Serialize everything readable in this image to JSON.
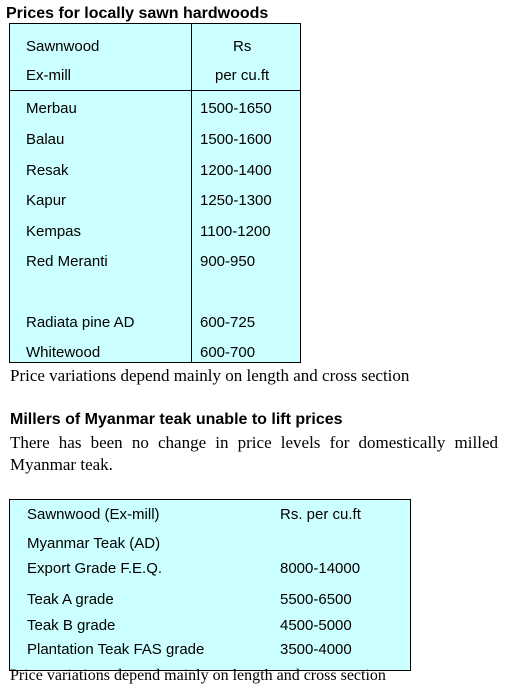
{
  "section1": {
    "title": "Prices for locally sawn hardwoods",
    "header": {
      "col1_line1": "Sawnwood",
      "col1_line2": "Ex-mill",
      "col2_line1": "Rs",
      "col2_line2": "per cu.ft"
    },
    "rows": [
      {
        "name": "Merbau",
        "price": "1500-1650"
      },
      {
        "name": "Balau",
        "price": "1500-1600"
      },
      {
        "name": "Resak",
        "price": "1200-1400"
      },
      {
        "name": "Kapur",
        "price": "1250-1300"
      },
      {
        "name": "Kempas",
        "price": "1100-1200"
      },
      {
        "name": "Red Meranti",
        "price": "900-950"
      },
      {
        "name": "Radiata pine AD",
        "price": "600-725"
      },
      {
        "name": "Whitewood",
        "price": "600-700"
      }
    ],
    "note": "Price variations depend mainly on length and cross section"
  },
  "section2": {
    "title": "Millers of Myanmar teak unable to lift prices",
    "paragraph": "There has been no change in price levels for domestically milled Myanmar teak.",
    "header": {
      "col1": "Sawnwood (Ex-mill)",
      "col2": "Rs. per cu.ft"
    },
    "subheader": "Myanmar Teak (AD)",
    "rows": [
      {
        "name": "Export Grade F.E.Q.",
        "price": "8000-14000"
      },
      {
        "name": "Teak A grade",
        "price": "5500-6500"
      },
      {
        "name": "Teak B grade",
        "price": "4500-5000"
      },
      {
        "name": "Plantation Teak FAS grade",
        "price": "3500-4000"
      }
    ],
    "note": "Price variations depend mainly on length and cross section"
  },
  "colors": {
    "table_bg": "#ccffff",
    "border": "#000000",
    "text": "#000000"
  }
}
